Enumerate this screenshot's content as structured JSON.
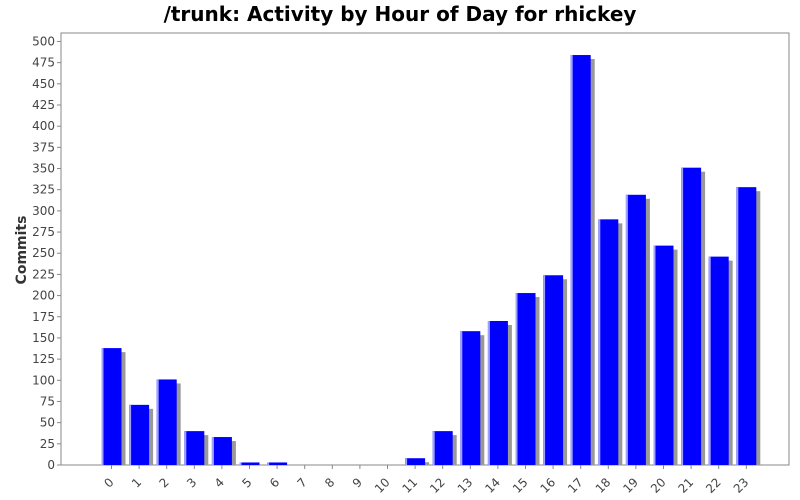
{
  "chart_data": {
    "type": "bar",
    "title": "/trunk: Activity by Hour of Day for rhickey",
    "xlabel": "",
    "ylabel": "Commits",
    "categories": [
      "0",
      "1",
      "2",
      "3",
      "4",
      "5",
      "6",
      "7",
      "8",
      "9",
      "10",
      "11",
      "12",
      "13",
      "14",
      "15",
      "16",
      "17",
      "18",
      "19",
      "20",
      "21",
      "22",
      "23"
    ],
    "values": [
      138,
      71,
      101,
      40,
      33,
      3,
      3,
      0,
      0,
      0,
      0,
      8,
      40,
      158,
      170,
      203,
      224,
      484,
      290,
      319,
      259,
      351,
      246,
      328
    ],
    "ylim": [
      0,
      510
    ],
    "yticks": [
      0,
      25,
      50,
      75,
      100,
      125,
      150,
      175,
      200,
      225,
      250,
      275,
      300,
      325,
      350,
      375,
      400,
      425,
      450,
      475,
      500
    ],
    "grid": false,
    "legend": "none",
    "colors": {
      "bar": "#0000ff",
      "shadow": "#999999",
      "axis": "#888888",
      "highlight": "#a0a0ff"
    }
  }
}
